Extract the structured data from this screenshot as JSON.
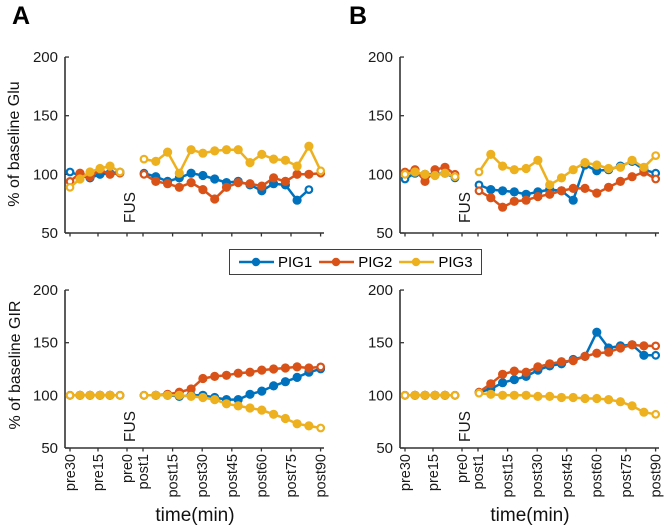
{
  "panels": {
    "a": "A",
    "b": "B"
  },
  "axes": {
    "xlabel": "time(min)",
    "ylabel_glu": "% of baseline Glu",
    "ylabel_gir": "% of baseline GIR",
    "fus_label": "FUS",
    "x_tick_labels": [
      "pre30",
      "pre15",
      "pre0",
      "post1",
      "post15",
      "post30",
      "post45",
      "post60",
      "post75",
      "post90"
    ],
    "y_ticks": [
      50,
      100,
      150,
      200
    ],
    "ylim": [
      50,
      200
    ]
  },
  "legend": {
    "items": [
      {
        "label": "PIG1",
        "color": "#0072BD"
      },
      {
        "label": "PIG2",
        "color": "#D95319"
      },
      {
        "label": "PIG3",
        "color": "#EDB120"
      }
    ]
  },
  "chart_data": [
    {
      "id": "svg-a-glu",
      "type": "line",
      "panel": "A",
      "ylabel": "% of baseline Glu",
      "x_pre_labels": [
        "pre30",
        "pre25",
        "pre20",
        "pre15",
        "pre10",
        "pre5"
      ],
      "x_post_range": [
        "post1",
        "post90"
      ],
      "series": [
        {
          "name": "PIG1",
          "color": "#0072BD",
          "pre": [
            102,
            99,
            97,
            100,
            101,
            102
          ],
          "post": [
            101,
            98,
            94,
            97,
            101,
            99,
            96,
            93,
            94,
            91,
            86,
            92,
            91,
            78,
            87,
            null
          ]
        },
        {
          "name": "PIG2",
          "color": "#D95319",
          "pre": [
            94,
            101,
            98,
            104,
            100,
            101
          ],
          "post": [
            100,
            94,
            92,
            89,
            93,
            87,
            79,
            89,
            93,
            92,
            90,
            97,
            94,
            100,
            100,
            101
          ]
        },
        {
          "name": "PIG3",
          "color": "#EDB120",
          "pre": [
            89,
            96,
            102,
            105,
            107,
            102
          ],
          "post": [
            113,
            111,
            119,
            101,
            121,
            118,
            120,
            121,
            121,
            110,
            117,
            113,
            112,
            107,
            124,
            103
          ]
        }
      ]
    },
    {
      "id": "svg-b-glu",
      "type": "line",
      "panel": "B",
      "ylabel": "% of baseline Glu",
      "x_pre_labels": [
        "pre30",
        "pre25",
        "pre20",
        "pre15",
        "pre10",
        "pre5"
      ],
      "x_post_range": [
        "post1",
        "post90"
      ],
      "series": [
        {
          "name": "PIG1",
          "color": "#0072BD",
          "pre": [
            96,
            101,
            100,
            100,
            101,
            97
          ],
          "post": [
            91,
            87,
            86,
            85,
            83,
            85,
            87,
            86,
            78,
            108,
            103,
            104,
            107,
            111,
            104,
            101
          ]
        },
        {
          "name": "PIG2",
          "color": "#D95319",
          "pre": [
            102,
            104,
            94,
            104,
            106,
            100
          ],
          "post": [
            86,
            80,
            72,
            77,
            78,
            81,
            83,
            86,
            88,
            88,
            84,
            89,
            94,
            98,
            102,
            96
          ]
        },
        {
          "name": "PIG3",
          "color": "#EDB120",
          "pre": [
            100,
            102,
            100,
            99,
            101,
            98
          ],
          "post": [
            102,
            117,
            107,
            104,
            105,
            112,
            91,
            97,
            104,
            110,
            108,
            105,
            106,
            112,
            106,
            116
          ]
        }
      ]
    },
    {
      "id": "svg-a-gir",
      "type": "line",
      "panel": "A",
      "ylabel": "% of baseline GIR",
      "x_pre_labels": [
        "pre30",
        "pre25",
        "pre20",
        "pre15",
        "pre10",
        "pre5"
      ],
      "x_post_range": [
        "post1",
        "post90"
      ],
      "series": [
        {
          "name": "PIG1",
          "color": "#0072BD",
          "pre": [
            100,
            100,
            100,
            100,
            100,
            100
          ],
          "post": [
            100,
            100,
            100,
            99,
            100,
            100,
            98,
            96,
            96,
            101,
            104,
            109,
            113,
            117,
            122,
            125
          ]
        },
        {
          "name": "PIG2",
          "color": "#D95319",
          "pre": [
            100,
            100,
            100,
            100,
            100,
            100
          ],
          "post": [
            100,
            100,
            101,
            103,
            106,
            116,
            118,
            119,
            121,
            122,
            124,
            125,
            126,
            127,
            126,
            127
          ]
        },
        {
          "name": "PIG3",
          "color": "#EDB120",
          "pre": [
            100,
            100,
            100,
            100,
            100,
            100
          ],
          "post": [
            100,
            100,
            100,
            100,
            99,
            98,
            96,
            92,
            90,
            88,
            86,
            82,
            78,
            73,
            71,
            69
          ]
        }
      ]
    },
    {
      "id": "svg-b-gir",
      "type": "line",
      "panel": "B",
      "ylabel": "% of baseline GIR",
      "x_pre_labels": [
        "pre30",
        "pre25",
        "pre20",
        "pre15",
        "pre10",
        "pre5"
      ],
      "x_post_range": [
        "post1",
        "post90"
      ],
      "series": [
        {
          "name": "PIG1",
          "color": "#0072BD",
          "pre": [
            100,
            100,
            100,
            100,
            100,
            100
          ],
          "post": [
            103,
            106,
            112,
            115,
            118,
            124,
            128,
            130,
            134,
            137,
            160,
            145,
            147,
            148,
            138,
            138
          ]
        },
        {
          "name": "PIG2",
          "color": "#D95319",
          "pre": [
            100,
            100,
            100,
            100,
            100,
            100
          ],
          "post": [
            103,
            111,
            120,
            123,
            122,
            127,
            130,
            132,
            133,
            137,
            140,
            141,
            145,
            148,
            147,
            147
          ]
        },
        {
          "name": "PIG3",
          "color": "#EDB120",
          "pre": [
            100,
            100,
            100,
            100,
            100,
            100
          ],
          "post": [
            102,
            101,
            100,
            100,
            100,
            99,
            99,
            98,
            98,
            97,
            97,
            96,
            94,
            90,
            84,
            82
          ]
        }
      ]
    }
  ]
}
